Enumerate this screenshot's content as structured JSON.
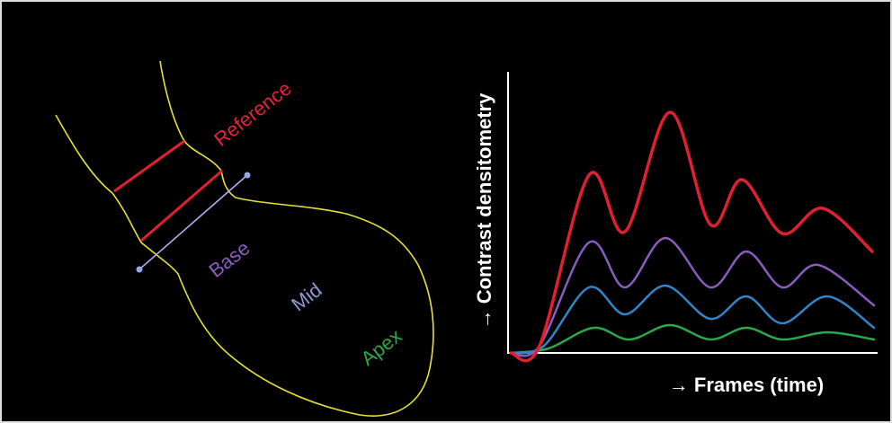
{
  "diagram": {
    "labels": {
      "reference": "Reference",
      "base": "Base",
      "mid": "Mid",
      "apex": "Apex"
    },
    "graph": {
      "y_axis_label": "→ Contrast densitometry",
      "x_axis_label": "→ Frames (time)"
    }
  }
}
